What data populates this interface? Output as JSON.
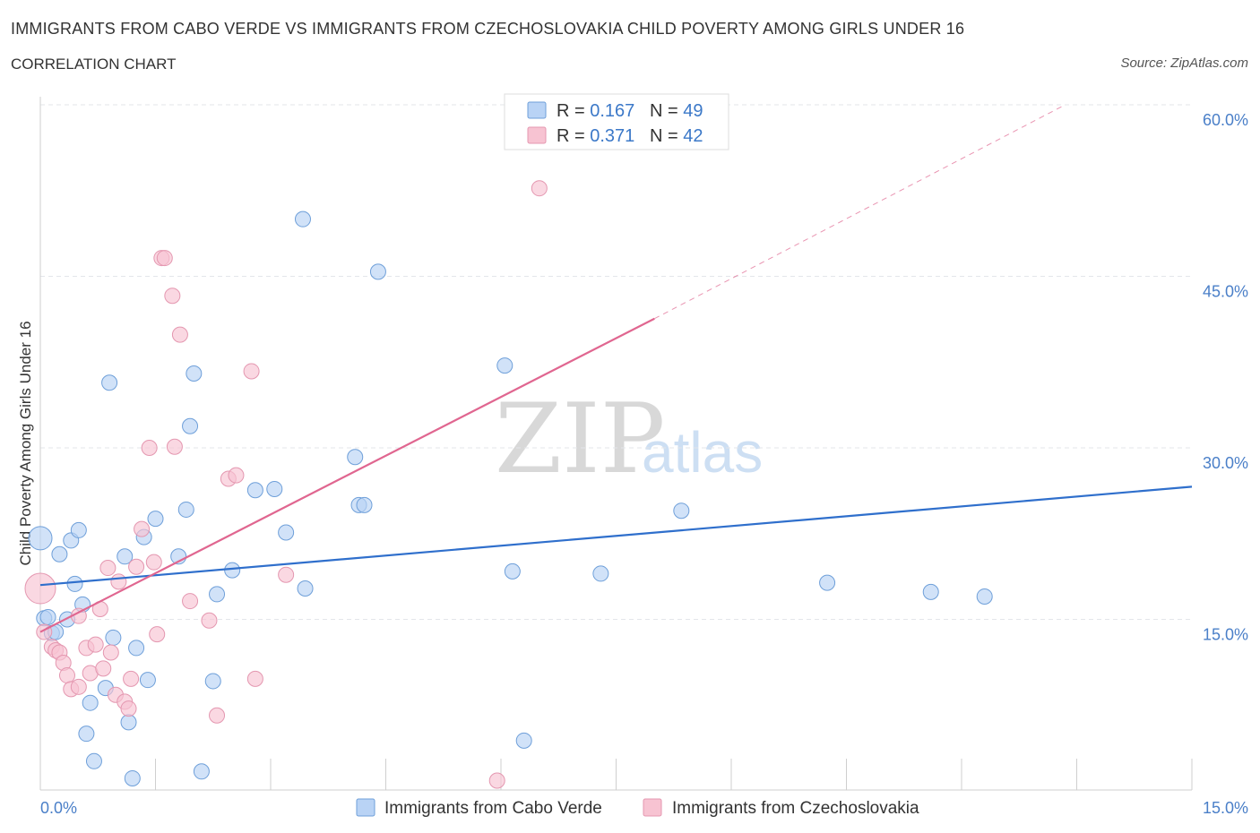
{
  "header": {
    "title": "IMMIGRANTS FROM CABO VERDE VS IMMIGRANTS FROM CZECHOSLOVAKIA CHILD POVERTY AMONG GIRLS UNDER 16",
    "subtitle": "CORRELATION CHART",
    "source": "Source: ZipAtlas.com"
  },
  "watermark": {
    "zip": "ZIP",
    "atlas": "atlas"
  },
  "colors": {
    "blue_fill": "#b9d3f5",
    "blue_stroke": "#6e9fd9",
    "blue_line": "#2f6fcc",
    "pink_fill": "#f7c3d2",
    "pink_stroke": "#e497b0",
    "pink_line": "#e06690",
    "grid": "#e3e6ea",
    "tick_text": "#4a7fc8"
  },
  "legend": {
    "rows": [
      {
        "r_label": "R = ",
        "r_value": "0.167",
        "n_label": "N = ",
        "n_value": "49"
      },
      {
        "r_label": "R = ",
        "r_value": "0.371",
        "n_label": "N = ",
        "n_value": "42"
      }
    ]
  },
  "chart_data": {
    "type": "scatter",
    "title": "IMMIGRANTS FROM CABO VERDE VS IMMIGRANTS FROM CZECHOSLOVAKIA CHILD POVERTY AMONG GIRLS UNDER 16",
    "subtitle": "CORRELATION CHART",
    "xlabel": "",
    "ylabel": "Child Poverty Among Girls Under 16",
    "xlim": [
      0,
      15
    ],
    "ylim": [
      0,
      60
    ],
    "x_tick_labels": [
      {
        "value": 0,
        "label": "0.0%"
      },
      {
        "value": 15,
        "label": "15.0%"
      }
    ],
    "y_tick_labels": [
      {
        "value": 15,
        "label": "15.0%"
      },
      {
        "value": 30,
        "label": "30.0%"
      },
      {
        "value": 45,
        "label": "45.0%"
      },
      {
        "value": 60,
        "label": "60.0%"
      }
    ],
    "legend_position": "top-center",
    "series": [
      {
        "name": "Immigrants from Cabo Verde",
        "color": "blue",
        "R": 0.167,
        "N": 49,
        "trend": {
          "x0": 0,
          "y0": 18.0,
          "x1": 15,
          "y1": 26.6,
          "dashed_to": null
        },
        "points": [
          [
            0.0,
            22.1
          ],
          [
            0.05,
            15.1
          ],
          [
            0.1,
            15.2
          ],
          [
            0.15,
            13.8
          ],
          [
            0.25,
            20.7
          ],
          [
            0.35,
            15.0
          ],
          [
            0.4,
            21.9
          ],
          [
            0.45,
            18.1
          ],
          [
            0.5,
            22.8
          ],
          [
            0.55,
            16.3
          ],
          [
            0.6,
            5.0
          ],
          [
            0.65,
            7.7
          ],
          [
            0.7,
            2.6
          ],
          [
            0.85,
            9.0
          ],
          [
            0.9,
            35.7
          ],
          [
            0.95,
            13.4
          ],
          [
            1.1,
            20.5
          ],
          [
            1.15,
            6.0
          ],
          [
            1.2,
            1.1
          ],
          [
            1.25,
            12.5
          ],
          [
            1.35,
            22.2
          ],
          [
            1.4,
            9.7
          ],
          [
            1.5,
            23.8
          ],
          [
            1.8,
            20.5
          ],
          [
            1.9,
            24.6
          ],
          [
            1.95,
            31.9
          ],
          [
            2.0,
            36.5
          ],
          [
            2.1,
            1.7
          ],
          [
            2.25,
            9.6
          ],
          [
            2.3,
            17.2
          ],
          [
            2.5,
            19.3
          ],
          [
            2.8,
            26.3
          ],
          [
            3.05,
            26.4
          ],
          [
            3.2,
            22.6
          ],
          [
            3.45,
            17.7
          ],
          [
            3.42,
            50.0
          ],
          [
            4.1,
            29.2
          ],
          [
            4.15,
            25.0
          ],
          [
            4.22,
            25.0
          ],
          [
            4.4,
            45.4
          ],
          [
            6.05,
            37.2
          ],
          [
            6.15,
            19.2
          ],
          [
            6.3,
            4.4
          ],
          [
            7.3,
            19.0
          ],
          [
            8.35,
            24.5
          ],
          [
            10.25,
            18.2
          ],
          [
            11.6,
            17.4
          ],
          [
            12.3,
            17.0
          ],
          [
            0.2,
            13.9
          ]
        ]
      },
      {
        "name": "Immigrants from Czechoslovakia",
        "color": "pink",
        "R": 0.371,
        "N": 42,
        "trend": {
          "x0": 0,
          "y0": 13.9,
          "x1": 8.0,
          "y1": 41.3,
          "dashed_to": {
            "x": 13.35,
            "y": 60.0
          }
        },
        "points": [
          [
            0.0,
            17.7
          ],
          [
            0.05,
            13.9
          ],
          [
            0.15,
            12.6
          ],
          [
            0.2,
            12.3
          ],
          [
            0.25,
            12.1
          ],
          [
            0.3,
            11.2
          ],
          [
            0.35,
            10.1
          ],
          [
            0.4,
            8.9
          ],
          [
            0.5,
            15.3
          ],
          [
            0.5,
            9.1
          ],
          [
            0.6,
            12.5
          ],
          [
            0.65,
            10.3
          ],
          [
            0.72,
            12.8
          ],
          [
            0.78,
            15.9
          ],
          [
            0.82,
            10.7
          ],
          [
            0.88,
            19.5
          ],
          [
            0.92,
            12.1
          ],
          [
            0.98,
            8.4
          ],
          [
            1.02,
            18.3
          ],
          [
            1.1,
            7.8
          ],
          [
            1.15,
            7.2
          ],
          [
            1.18,
            9.8
          ],
          [
            1.25,
            19.6
          ],
          [
            1.32,
            22.9
          ],
          [
            1.42,
            30.0
          ],
          [
            1.48,
            20.0
          ],
          [
            1.52,
            13.7
          ],
          [
            1.58,
            46.6
          ],
          [
            1.62,
            46.6
          ],
          [
            1.72,
            43.3
          ],
          [
            1.75,
            30.1
          ],
          [
            1.82,
            39.9
          ],
          [
            1.95,
            16.6
          ],
          [
            2.2,
            14.9
          ],
          [
            2.3,
            6.6
          ],
          [
            2.45,
            27.3
          ],
          [
            2.55,
            27.6
          ],
          [
            2.75,
            36.7
          ],
          [
            2.8,
            9.8
          ],
          [
            3.2,
            18.9
          ],
          [
            5.95,
            0.9
          ],
          [
            6.5,
            52.7
          ]
        ]
      }
    ]
  },
  "bottom_legend": {
    "items": [
      {
        "label": "Immigrants from Cabo Verde"
      },
      {
        "label": "Immigrants from Czechoslovakia"
      }
    ]
  }
}
